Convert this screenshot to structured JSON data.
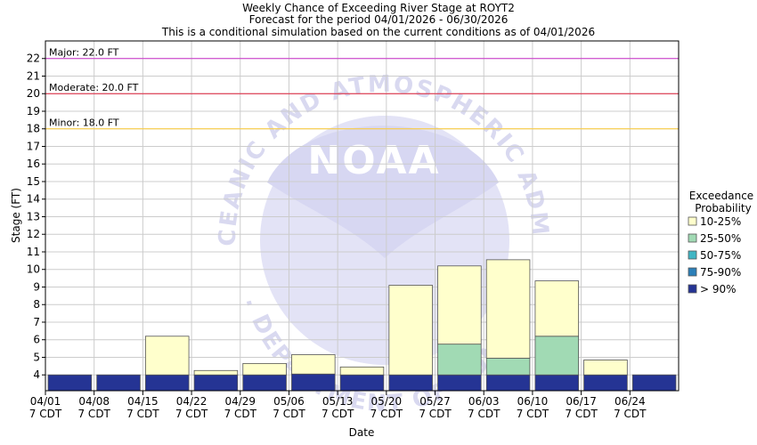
{
  "chart_data": {
    "type": "bar",
    "stacked": true,
    "title_lines": [
      "Weekly Chance of Exceeding River Stage at ROYT2",
      "Forecast for the period 04/01/2026 - 06/30/2026",
      "This is a conditional simulation based on the current conditions as of 04/01/2026"
    ],
    "xlabel": "Date",
    "ylabel": "Stage (FT)",
    "ylim": [
      3.1,
      23.0
    ],
    "yticks": [
      4,
      5,
      6,
      7,
      8,
      9,
      10,
      11,
      12,
      13,
      14,
      15,
      16,
      17,
      18,
      19,
      20,
      21,
      22
    ],
    "grid": true,
    "categories": [
      "04/01",
      "04/08",
      "04/15",
      "04/22",
      "04/29",
      "05/06",
      "05/13",
      "05/20",
      "05/27",
      "06/03",
      "06/10",
      "06/17",
      "06/24"
    ],
    "category_sublabel": "7 CDT",
    "bars": [
      {
        "gt90": 4.0,
        "p75_90": 4.0,
        "p50_75": 4.0,
        "p25_50": 4.0,
        "p10_25": 4.0
      },
      {
        "gt90": 4.0,
        "p75_90": 4.0,
        "p50_75": 4.0,
        "p25_50": 4.0,
        "p10_25": 4.0
      },
      {
        "gt90": 4.0,
        "p75_90": 4.0,
        "p50_75": 4.0,
        "p25_50": 4.0,
        "p10_25": 6.2
      },
      {
        "gt90": 4.0,
        "p75_90": 4.0,
        "p50_75": 4.0,
        "p25_50": 4.0,
        "p10_25": 4.25
      },
      {
        "gt90": 4.0,
        "p75_90": 4.0,
        "p50_75": 4.0,
        "p25_50": 4.0,
        "p10_25": 4.65
      },
      {
        "gt90": 4.05,
        "p75_90": 4.05,
        "p50_75": 4.05,
        "p25_50": 4.05,
        "p10_25": 5.15
      },
      {
        "gt90": 4.0,
        "p75_90": 4.0,
        "p50_75": 4.0,
        "p25_50": 4.0,
        "p10_25": 4.45
      },
      {
        "gt90": 4.0,
        "p75_90": 4.0,
        "p50_75": 4.0,
        "p25_50": 4.0,
        "p10_25": 9.1
      },
      {
        "gt90": 4.0,
        "p75_90": 4.0,
        "p50_75": 4.0,
        "p25_50": 5.75,
        "p10_25": 10.2
      },
      {
        "gt90": 4.0,
        "p75_90": 4.0,
        "p50_75": 4.0,
        "p25_50": 4.95,
        "p10_25": 10.55
      },
      {
        "gt90": 4.0,
        "p75_90": 4.0,
        "p50_75": 4.0,
        "p25_50": 6.2,
        "p10_25": 9.35
      },
      {
        "gt90": 4.0,
        "p75_90": 4.0,
        "p50_75": 4.0,
        "p25_50": 4.0,
        "p10_25": 4.85
      },
      {
        "gt90": 4.0,
        "p75_90": 4.0,
        "p50_75": 4.0,
        "p25_50": 4.0,
        "p10_25": 4.0
      }
    ],
    "thresholds": [
      {
        "label": "Major: 22.0 FT",
        "value": 22.0,
        "color": "#cc33cc"
      },
      {
        "label": "Moderate: 20.0 FT",
        "value": 20.0,
        "color": "#e0203a"
      },
      {
        "label": "Minor: 18.0 FT",
        "value": 18.0,
        "color": "#ffcc33"
      }
    ],
    "legend": {
      "title_lines": [
        "Exceedance",
        "Probability"
      ],
      "placement": "right",
      "items": [
        {
          "key": "p10_25",
          "label": "10-25%",
          "color": "#ffffcc"
        },
        {
          "key": "p25_50",
          "label": "25-50%",
          "color": "#a1dab4"
        },
        {
          "key": "p50_75",
          "label": "50-75%",
          "color": "#41b6c4"
        },
        {
          "key": "p75_90",
          "label": "75-90%",
          "color": "#2c7fb8"
        },
        {
          "key": "gt90",
          "label": "> 90%",
          "color": "#253494"
        }
      ]
    }
  },
  "watermark": {
    "logo_text": "NOAA",
    "ring_top": "NATIONAL OCEANIC AND ATMOSPHERIC ADMINISTRATION",
    "ring_bottom": "U.S. DEPARTMENT OF COMMERCE"
  }
}
